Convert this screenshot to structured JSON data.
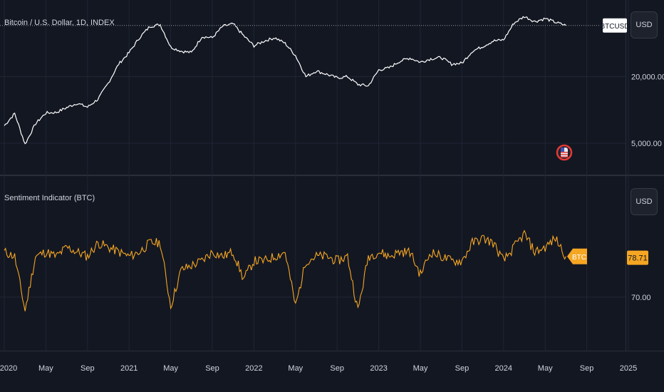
{
  "top_pane": {
    "title": "Bitcoin / U.S. Dollar, 1D, INDEX",
    "ticker_tag": "BTCUSD",
    "currency_button": "USD",
    "price_labels": [
      "20,000.00",
      "5,000.00"
    ]
  },
  "bottom_pane": {
    "title": "Sentiment Indicator (BTC)",
    "currency_button": "USD",
    "series_tag": "BTC",
    "last_value_label": "78.71",
    "tick_labels": [
      "70.00"
    ]
  },
  "colors": {
    "background": "#131722",
    "price_line": "#ffffff",
    "sentiment_line": "#f5a623",
    "grid": "#1f2535",
    "separator": "#2a2e39"
  },
  "icons": {
    "event_marker": "us-flag-icon"
  },
  "chart_data": [
    {
      "type": "line",
      "title": "Bitcoin / U.S. Dollar, 1D, INDEX",
      "y_scale": "log",
      "y_tick_labels": [
        "20,000.00",
        "5,000.00"
      ],
      "x": [
        "2020-01",
        "2020-02",
        "2020-03",
        "2020-04",
        "2020-05",
        "2020-06",
        "2020-07",
        "2020-08",
        "2020-09",
        "2020-10",
        "2020-11",
        "2020-12",
        "2021-01",
        "2021-02",
        "2021-03",
        "2021-04",
        "2021-05",
        "2021-06",
        "2021-07",
        "2021-08",
        "2021-09",
        "2021-10",
        "2021-11",
        "2021-12",
        "2022-01",
        "2022-02",
        "2022-03",
        "2022-04",
        "2022-05",
        "2022-06",
        "2022-07",
        "2022-08",
        "2022-09",
        "2022-10",
        "2022-11",
        "2022-12",
        "2023-01",
        "2023-02",
        "2023-03",
        "2023-04",
        "2023-05",
        "2023-06",
        "2023-07",
        "2023-08",
        "2023-09",
        "2023-10",
        "2023-11",
        "2023-12",
        "2024-01",
        "2024-02",
        "2024-03",
        "2024-04",
        "2024-05",
        "2024-06",
        "2024-07"
      ],
      "series": [
        {
          "values": [
            7200,
            9300,
            4900,
            7500,
            9400,
            9500,
            10500,
            11500,
            10600,
            12500,
            17500,
            26000,
            33000,
            45000,
            57000,
            59000,
            37000,
            34000,
            33000,
            46000,
            45000,
            57000,
            60000,
            47000,
            38000,
            42000,
            45000,
            40000,
            31000,
            20000,
            22500,
            21000,
            19500,
            20000,
            17000,
            16500,
            23000,
            24000,
            27500,
            29500,
            27000,
            29000,
            29800,
            26000,
            26500,
            34000,
            37500,
            42000,
            43000,
            61000,
            70000,
            63000,
            67000,
            62000,
            58000
          ]
        }
      ]
    },
    {
      "type": "line",
      "title": "Sentiment Indicator (BTC)",
      "ylim": [
        64,
        90
      ],
      "y_tick_labels": [
        "70.00"
      ],
      "last_value": 78.71,
      "x": [
        "2020-01",
        "2020-02",
        "2020-03",
        "2020-04",
        "2020-05",
        "2020-06",
        "2020-07",
        "2020-08",
        "2020-09",
        "2020-10",
        "2020-11",
        "2020-12",
        "2021-01",
        "2021-02",
        "2021-03",
        "2021-04",
        "2021-05",
        "2021-06",
        "2021-07",
        "2021-08",
        "2021-09",
        "2021-10",
        "2021-11",
        "2021-12",
        "2022-01",
        "2022-02",
        "2022-03",
        "2022-04",
        "2022-05",
        "2022-06",
        "2022-07",
        "2022-08",
        "2022-09",
        "2022-10",
        "2022-11",
        "2022-12",
        "2023-01",
        "2023-02",
        "2023-03",
        "2023-04",
        "2023-05",
        "2023-06",
        "2023-07",
        "2023-08",
        "2023-09",
        "2023-10",
        "2023-11",
        "2023-12",
        "2024-01",
        "2024-02",
        "2024-03",
        "2024-04",
        "2024-05",
        "2024-06",
        "2024-07"
      ],
      "series": [
        {
          "name": "BTC",
          "values": [
            80,
            79,
            67,
            79,
            80,
            79,
            81,
            80,
            79,
            82,
            81,
            80,
            79,
            80,
            82,
            82,
            68,
            76,
            77,
            78,
            80,
            79,
            80,
            74,
            78,
            78,
            79,
            80,
            68,
            78,
            79,
            79,
            78,
            79,
            67,
            79,
            80,
            79,
            80,
            80,
            75,
            80,
            79,
            78,
            78,
            82,
            83,
            82,
            78,
            81,
            84,
            80,
            81,
            83,
            79
          ]
        }
      ]
    }
  ],
  "x_axis": {
    "labels": [
      "2020",
      "May",
      "Sep",
      "2021",
      "May",
      "Sep",
      "2022",
      "May",
      "Sep",
      "2023",
      "May",
      "Sep",
      "2024",
      "May",
      "Sep",
      "2025"
    ]
  }
}
